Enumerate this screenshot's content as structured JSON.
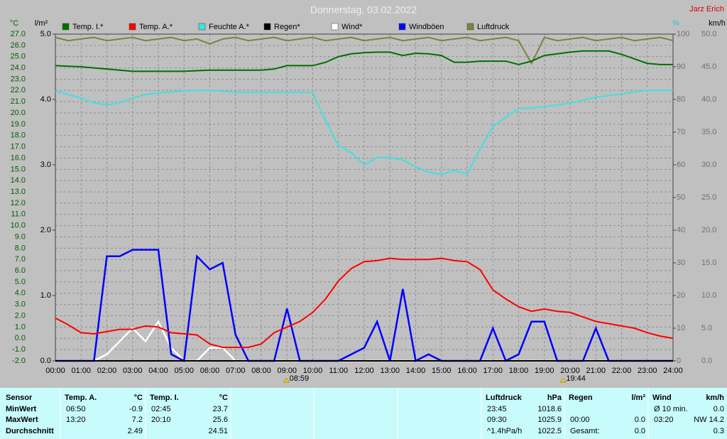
{
  "chart_data": {
    "type": "line",
    "title": "Donnerstag, 03.02.2022",
    "author": "Jarz Erich",
    "axis_labels": {
      "y": "°C",
      "y4": "l/m²",
      "y2": "%",
      "y3": "km/h"
    },
    "xlim": [
      0,
      24
    ],
    "xticks": [
      {
        "value": 0,
        "label": "00:00"
      },
      {
        "value": 1,
        "label": "01:00"
      },
      {
        "value": 2,
        "label": "02:00"
      },
      {
        "value": 3,
        "label": "03:00"
      },
      {
        "value": 4,
        "label": "04:00"
      },
      {
        "value": 5,
        "label": "05:00"
      },
      {
        "value": 6,
        "label": "06:00"
      },
      {
        "value": 7,
        "label": "07:00"
      },
      {
        "value": 8,
        "label": "08:00"
      },
      {
        "value": 9,
        "label": "09:00"
      },
      {
        "value": 10,
        "label": "10:00"
      },
      {
        "value": 11,
        "label": "11:00"
      },
      {
        "value": 12,
        "label": "12:00"
      },
      {
        "value": 13,
        "label": "13:00"
      },
      {
        "value": 14,
        "label": "14:00"
      },
      {
        "value": 15,
        "label": "15:00"
      },
      {
        "value": 16,
        "label": "16:00"
      },
      {
        "value": 17,
        "label": "17:00"
      },
      {
        "value": 18,
        "label": "18:00"
      },
      {
        "value": 19,
        "label": "19:00"
      },
      {
        "value": 20,
        "label": "20:00"
      },
      {
        "value": 21,
        "label": "21:00"
      },
      {
        "value": 22,
        "label": "22:00"
      },
      {
        "value": 23,
        "label": "23:00"
      },
      {
        "value": 24,
        "label": "24:00"
      }
    ],
    "ylim": [
      -2,
      27
    ],
    "yticks": [
      {
        "value": -2,
        "label": "-2.0"
      },
      {
        "value": -1,
        "label": "-1.0"
      },
      {
        "value": 0,
        "label": "0.0"
      },
      {
        "value": 1,
        "label": "1.0"
      },
      {
        "value": 2,
        "label": "2.0"
      },
      {
        "value": 3,
        "label": "3.0"
      },
      {
        "value": 4,
        "label": "4.0"
      },
      {
        "value": 5,
        "label": "5.0"
      },
      {
        "value": 6,
        "label": "6.0"
      },
      {
        "value": 7,
        "label": "7.0"
      },
      {
        "value": 8,
        "label": "8.0"
      },
      {
        "value": 9,
        "label": "9.0"
      },
      {
        "value": 10,
        "label": "10.0"
      },
      {
        "value": 11,
        "label": "11.0"
      },
      {
        "value": 12,
        "label": "12.0"
      },
      {
        "value": 13,
        "label": "13.0"
      },
      {
        "value": 14,
        "label": "14.0"
      },
      {
        "value": 15,
        "label": "15.0"
      },
      {
        "value": 16,
        "label": "16.0"
      },
      {
        "value": 17,
        "label": "17.0"
      },
      {
        "value": 18,
        "label": "18.0"
      },
      {
        "value": 19,
        "label": "19.0"
      },
      {
        "value": 20,
        "label": "20.0"
      },
      {
        "value": 21,
        "label": "21.0"
      },
      {
        "value": 22,
        "label": "22.0"
      },
      {
        "value": 23,
        "label": "23.0"
      },
      {
        "value": 24,
        "label": "24.0"
      },
      {
        "value": 25,
        "label": "25.0"
      },
      {
        "value": 26,
        "label": "26.0"
      },
      {
        "value": 27,
        "label": "27.0"
      }
    ],
    "y4lim": [
      0,
      5
    ],
    "y4ticks": [
      {
        "value": 0,
        "label": "0.0"
      },
      {
        "value": 1,
        "label": "1.0"
      },
      {
        "value": 2,
        "label": "2.0"
      },
      {
        "value": 3,
        "label": "3.0"
      },
      {
        "value": 4,
        "label": "4.0"
      },
      {
        "value": 5,
        "label": "5.0"
      }
    ],
    "y2lim": [
      0,
      100
    ],
    "y2ticks": [
      0,
      10,
      20,
      30,
      40,
      50,
      60,
      70,
      80,
      90,
      100
    ],
    "y3lim": [
      0,
      50
    ],
    "y3ticks": [
      {
        "value": 0,
        "label": "0.0"
      },
      {
        "value": 5,
        "label": "5.0"
      },
      {
        "value": 10,
        "label": "10.0"
      },
      {
        "value": 15,
        "label": "15.0"
      },
      {
        "value": 20,
        "label": "20.0"
      },
      {
        "value": 25,
        "label": "25.0"
      },
      {
        "value": 30,
        "label": "30.0"
      },
      {
        "value": 35,
        "label": "35.0"
      },
      {
        "value": 40,
        "label": "40.0"
      },
      {
        "value": 45,
        "label": "45.0"
      },
      {
        "value": 50,
        "label": "50.0"
      }
    ],
    "grid": true,
    "x": [
      0,
      0.5,
      1,
      1.5,
      2,
      2.5,
      3,
      3.5,
      4,
      4.5,
      5,
      5.5,
      6,
      6.5,
      7,
      7.5,
      8,
      8.5,
      9,
      9.5,
      10,
      10.5,
      11,
      11.5,
      12,
      12.5,
      13,
      13.5,
      14,
      14.5,
      15,
      15.5,
      16,
      16.5,
      17,
      17.5,
      18,
      18.5,
      19,
      19.5,
      20,
      20.5,
      21,
      21.5,
      22,
      22.5,
      23,
      23.5,
      24
    ],
    "series": [
      {
        "name": "Temp. I.*",
        "color": "#007000",
        "axis": "y",
        "values": [
          24.2,
          24.15,
          24.1,
          24.0,
          23.9,
          23.8,
          23.7,
          23.7,
          23.7,
          23.7,
          23.7,
          23.75,
          23.8,
          23.8,
          23.8,
          23.8,
          23.8,
          23.9,
          24.2,
          24.2,
          24.2,
          24.5,
          25.0,
          25.25,
          25.35,
          25.4,
          25.4,
          25.1,
          25.3,
          25.25,
          25.1,
          24.5,
          24.5,
          24.6,
          24.6,
          24.6,
          24.3,
          24.6,
          25.1,
          25.25,
          25.4,
          25.5,
          25.5,
          25.5,
          25.2,
          24.8,
          24.4,
          24.3,
          24.3
        ]
      },
      {
        "name": "Temp. A.*",
        "color": "#ff0000",
        "axis": "y",
        "values": [
          1.8,
          1.2,
          0.5,
          0.4,
          0.6,
          0.8,
          0.8,
          1.1,
          1.0,
          0.5,
          0.4,
          0.3,
          -0.5,
          -0.8,
          -0.8,
          -0.8,
          -0.5,
          0.5,
          1.0,
          1.5,
          2.3,
          3.5,
          5.1,
          6.2,
          6.8,
          6.9,
          7.1,
          7.0,
          7.0,
          7.0,
          7.1,
          6.9,
          6.8,
          6.1,
          4.3,
          3.5,
          2.8,
          2.4,
          2.6,
          2.4,
          2.3,
          1.9,
          1.5,
          1.3,
          1.1,
          0.9,
          0.5,
          0.2,
          0.0
        ]
      },
      {
        "name": "Feuchte A.*",
        "color": "#40e0e0",
        "axis": "y2",
        "values": [
          82.6,
          81.5,
          80.4,
          79,
          78.3,
          79,
          80.4,
          81.5,
          82,
          82.3,
          82.6,
          82.8,
          82.8,
          82.5,
          82.2,
          82.2,
          82.2,
          82.2,
          82.2,
          82.2,
          82,
          73.5,
          65.9,
          63.7,
          60,
          62.2,
          62.2,
          61.5,
          59.3,
          57.8,
          57,
          58.3,
          57.2,
          64.8,
          71.7,
          74.6,
          77.2,
          77.4,
          77.8,
          78.3,
          78.9,
          79.8,
          80.7,
          81.2,
          81.7,
          82.3,
          82.8,
          82.8,
          82.8
        ]
      },
      {
        "name": "Regen*",
        "color": "#000000",
        "axis": "y4",
        "values": [
          0,
          0,
          0,
          0,
          0,
          0,
          0,
          0,
          0,
          0,
          0,
          0,
          0,
          0,
          0,
          0,
          0,
          0,
          0,
          0,
          0,
          0,
          0,
          0,
          0,
          0,
          0,
          0,
          0,
          0,
          0,
          0,
          0,
          0,
          0,
          0,
          0,
          0,
          0,
          0,
          0,
          0,
          0,
          0,
          0,
          0,
          0,
          0,
          0
        ]
      },
      {
        "name": "Wind*",
        "color": "#ffffff",
        "axis": "y3",
        "values": [
          0,
          0,
          0,
          0,
          1,
          3,
          5,
          3,
          6,
          2,
          0,
          0,
          2,
          2,
          0,
          0,
          0,
          0,
          0,
          0,
          0,
          0,
          0,
          0,
          0,
          0,
          0,
          0,
          0,
          0,
          0,
          0,
          0,
          0,
          0,
          0,
          0,
          0,
          0,
          0,
          0,
          0,
          0,
          0,
          0,
          0,
          0,
          0,
          0
        ]
      },
      {
        "name": "Windböen",
        "color": "#0000ff",
        "axis": "y3",
        "values": [
          0,
          0,
          0,
          0,
          16,
          16,
          17,
          17,
          17,
          1,
          0,
          16,
          14,
          15,
          4,
          0,
          0,
          0,
          8,
          0,
          0,
          0,
          0,
          1,
          2,
          6,
          0,
          11,
          0,
          1,
          0,
          0,
          0,
          0,
          5,
          0,
          1,
          6,
          6,
          0,
          0,
          0,
          5,
          0,
          0,
          0,
          0,
          0,
          0
        ]
      },
      {
        "name": "Luftdruck",
        "color": "#808040",
        "axis": "y2",
        "values": [
          99,
          98,
          98.5,
          99,
          98,
          98.5,
          99,
          98,
          98.5,
          99,
          98,
          98.5,
          97,
          98.5,
          99,
          98,
          98.5,
          99,
          98,
          98.5,
          99,
          98,
          98.5,
          99,
          98,
          98.5,
          99,
          98,
          98.5,
          99,
          98,
          98.5,
          99,
          98,
          98.5,
          99,
          98,
          91,
          99,
          98,
          98.5,
          99,
          98,
          98.5,
          99,
          98,
          98.5,
          99,
          98
        ]
      }
    ],
    "annotations": [
      {
        "x": 8.983,
        "text": "08:59"
      },
      {
        "x": 19.733,
        "text": "19:44"
      }
    ]
  },
  "table": {
    "sensor_header": "Sensor",
    "row_labels": [
      "MinWert",
      "MaxWert",
      "Durchschnitt"
    ],
    "groups": [
      {
        "name": "Temp. A.",
        "unit": "°C",
        "rows": [
          {
            "left": "06:50",
            "right": "-0.9"
          },
          {
            "left": "13:20",
            "right": "7.2"
          },
          {
            "right": "2.49"
          }
        ]
      },
      {
        "name": "Temp. I.",
        "unit": "°C",
        "rows": [
          {
            "left": "02:45",
            "right": "23.7"
          },
          {
            "left": "20:10",
            "right": "25.6"
          },
          {
            "right": "24.51"
          }
        ]
      },
      {
        "name": "Luftdruck",
        "unit": "hPa",
        "rows": [
          {
            "left": "23:45",
            "right": "1018.6"
          },
          {
            "left": "09:30",
            "right": "1025.9"
          },
          {
            "left": "^1.4hPa/h",
            "right": "1022.5"
          }
        ]
      },
      {
        "name": "Regen",
        "unit": "l/m²",
        "rows": [
          {},
          {
            "left": "00:00",
            "right": "0.0"
          },
          {
            "left": "Gesamt:",
            "right": "0.0"
          }
        ]
      },
      {
        "name": "Wind",
        "unit": "km/h",
        "rows": [
          {
            "left": "Ø 10 min.",
            "right": "0.0"
          },
          {
            "left": "03:20",
            "right": "NW 14.2"
          },
          {
            "right": "0.3"
          }
        ]
      }
    ]
  }
}
